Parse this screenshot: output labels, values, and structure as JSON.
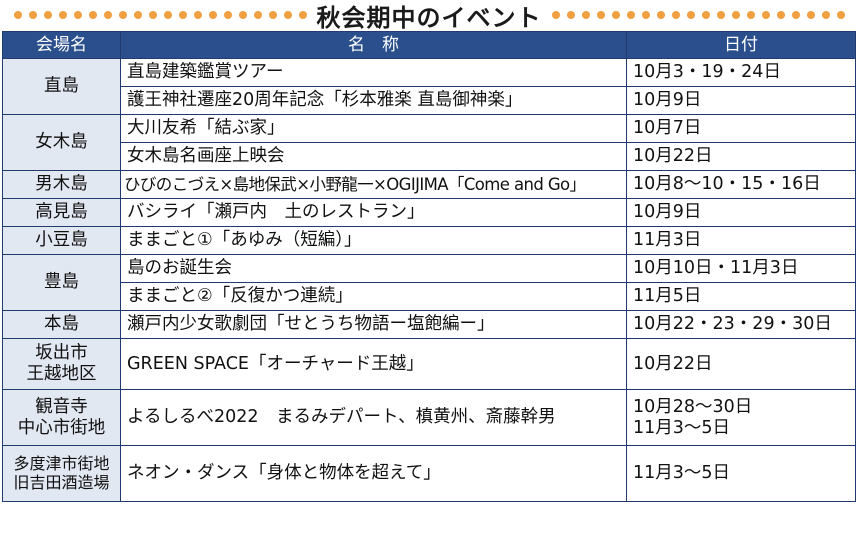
{
  "title": "秋会期中のイベント",
  "colors": {
    "header_bg": "#2a4f8c",
    "venue_bg": "#e2e8f2",
    "border": "#233c70",
    "dot_color": "#f0a040"
  },
  "headers": {
    "venue": "会場名",
    "name": "名　称",
    "date": "日付"
  },
  "rows": {
    "naoshima_1": {
      "venue": "直島",
      "name": "直島建築鑑賞ツアー",
      "date": "10月3・19・24日"
    },
    "naoshima_2": {
      "name": "護王神社遷座20周年記念「杉本雅楽 直島御神楽」",
      "date": "10月9日"
    },
    "megijima_1": {
      "venue": "女木島",
      "name": "大川友希「結ぶ家」",
      "date": "10月7日"
    },
    "megijima_2": {
      "name": "女木島名画座上映会",
      "date": "10月22日"
    },
    "ogijima": {
      "venue": "男木島",
      "name": "ひびのこづえ×島地保武×小野龍一×OGIJIMA「Come and Go」",
      "date": "10月8〜10・15・16日"
    },
    "takamijima": {
      "venue": "高見島",
      "name": "バシライ「瀬戸内　土のレストラン」",
      "date": "10月9日"
    },
    "shodoshima": {
      "venue": "小豆島",
      "name": "ままごと①「あゆみ（短編）」",
      "date": "11月3日"
    },
    "teshima_1": {
      "venue": "豊島",
      "name": "島のお誕生会",
      "date": "10月10日・11月3日"
    },
    "teshima_2": {
      "name": "ままごと②「反復かつ連続」",
      "date": "11月5日"
    },
    "honjima": {
      "venue": "本島",
      "name": "瀬戸内少女歌劇団「せとうち物語ー塩飽編ー」",
      "date": "10月22・23・29・30日"
    },
    "sakaide": {
      "venue_1": "坂出市",
      "venue_2": "王越地区",
      "name": "GREEN SPACE「オーチャード王越」",
      "date": "10月22日"
    },
    "kanonji": {
      "venue_1": "観音寺",
      "venue_2": "中心市街地",
      "name": "よるしるべ2022　まるみデパート、槙黄州、斎藤幹男",
      "date_1": "10月28〜30日",
      "date_2": "11月3〜5日"
    },
    "tadotsu": {
      "venue_1": "多度津市街地",
      "venue_2": "旧吉田酒造場",
      "name": "ネオン・ダンス「身体と物体を超えて」",
      "date": "11月3〜5日"
    }
  }
}
